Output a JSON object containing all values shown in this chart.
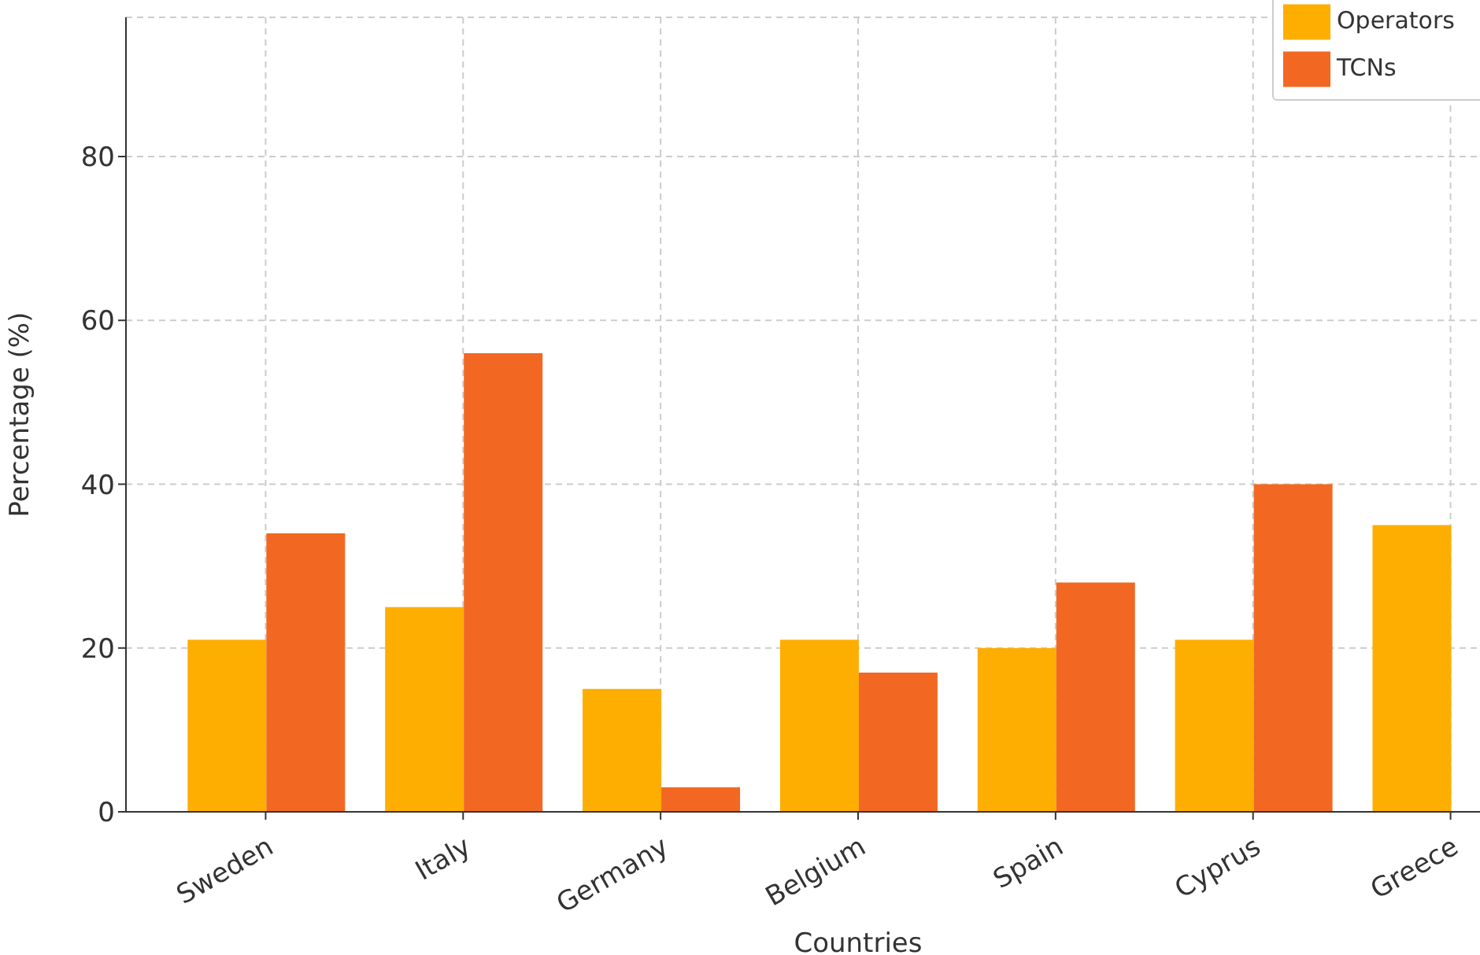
{
  "chart_data": {
    "type": "bar",
    "xlabel": "Countries",
    "ylabel": "Percentage (%)",
    "categories": [
      "Sweden",
      "Italy",
      "Germany",
      "Belgium",
      "Spain",
      "Cyprus",
      "Greece"
    ],
    "series": [
      {
        "name": "Operators",
        "color": "#fdae00",
        "values": [
          21,
          25,
          15,
          21,
          20,
          21,
          35
        ]
      },
      {
        "name": "TCNs",
        "color": "#f26822",
        "values": [
          34,
          56,
          3,
          17,
          28,
          40,
          null
        ]
      }
    ],
    "ylim": [
      0,
      97
    ],
    "yticks": [
      0,
      20,
      40,
      60,
      80
    ],
    "grid": true,
    "legend": "top right"
  }
}
